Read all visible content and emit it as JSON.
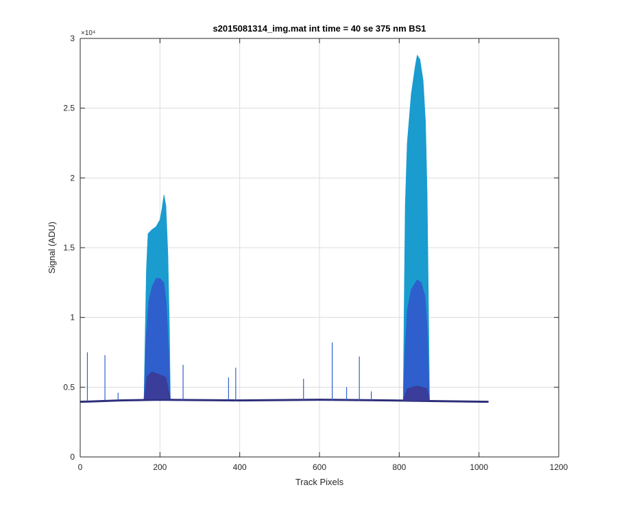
{
  "chart_data": {
    "type": "area",
    "title": "s2015081314_img.mat int time = 40 se  375 nm BS1",
    "xlabel": "Track Pixels",
    "ylabel": "Signal (ADU)",
    "xlim": [
      0,
      1200
    ],
    "ylim": [
      0,
      30000
    ],
    "y_exponent_label": "×10⁴",
    "x_ticks": [
      0,
      200,
      400,
      600,
      800,
      1000,
      1200
    ],
    "x_tick_labels": [
      "0",
      "200",
      "400",
      "600",
      "800",
      "1000",
      "1200"
    ],
    "y_ticks": [
      0,
      5000,
      10000,
      15000,
      20000,
      25000,
      30000
    ],
    "y_tick_labels": [
      "0",
      "0.5",
      "1",
      "1.5",
      "2",
      "2.5",
      "3"
    ],
    "grid": true,
    "baseline_points": [
      [
        0,
        3950
      ],
      [
        100,
        4050
      ],
      [
        200,
        4100
      ],
      [
        400,
        4050
      ],
      [
        600,
        4100
      ],
      [
        780,
        4050
      ],
      [
        1024,
        3950
      ]
    ],
    "series": [
      {
        "color": "#1a9ccf",
        "points": [
          [
            160,
            4150
          ],
          [
            163,
            9000
          ],
          [
            166,
            13500
          ],
          [
            170,
            16000
          ],
          [
            180,
            16300
          ],
          [
            190,
            16500
          ],
          [
            200,
            17000
          ],
          [
            205,
            17800
          ],
          [
            210,
            18800
          ],
          [
            215,
            18000
          ],
          [
            220,
            14500
          ],
          [
            224,
            9000
          ],
          [
            226,
            4150
          ],
          [
            810,
            4050
          ],
          [
            812,
            10000
          ],
          [
            815,
            18000
          ],
          [
            820,
            22500
          ],
          [
            830,
            26000
          ],
          [
            840,
            28000
          ],
          [
            845,
            28800
          ],
          [
            852,
            28500
          ],
          [
            860,
            27000
          ],
          [
            866,
            24000
          ],
          [
            870,
            19000
          ],
          [
            873,
            12000
          ],
          [
            876,
            4050
          ]
        ]
      },
      {
        "color": "#2e5fcc",
        "points": [
          [
            160,
            4150
          ],
          [
            165,
            8500
          ],
          [
            172,
            11200
          ],
          [
            180,
            12200
          ],
          [
            190,
            12800
          ],
          [
            200,
            12800
          ],
          [
            210,
            12500
          ],
          [
            216,
            11000
          ],
          [
            222,
            7500
          ],
          [
            226,
            4150
          ],
          [
            810,
            4050
          ],
          [
            814,
            7500
          ],
          [
            820,
            10500
          ],
          [
            830,
            12000
          ],
          [
            845,
            12700
          ],
          [
            855,
            12500
          ],
          [
            865,
            11500
          ],
          [
            870,
            9500
          ],
          [
            876,
            4050
          ]
        ]
      },
      {
        "color": "#3a3d9a",
        "points": [
          [
            160,
            4150
          ],
          [
            168,
            5800
          ],
          [
            180,
            6100
          ],
          [
            200,
            5900
          ],
          [
            215,
            5700
          ],
          [
            226,
            4150
          ],
          [
            810,
            4050
          ],
          [
            820,
            4900
          ],
          [
            845,
            5100
          ],
          [
            870,
            4900
          ],
          [
            876,
            4050
          ]
        ]
      }
    ],
    "spikes": [
      [
        18,
        7500
      ],
      [
        62,
        7300
      ],
      [
        95,
        4600
      ],
      [
        258,
        6600
      ],
      [
        372,
        5700
      ],
      [
        390,
        6400
      ],
      [
        560,
        5600
      ],
      [
        632,
        8200
      ],
      [
        668,
        5000
      ],
      [
        700,
        7200
      ],
      [
        730,
        4700
      ]
    ]
  }
}
